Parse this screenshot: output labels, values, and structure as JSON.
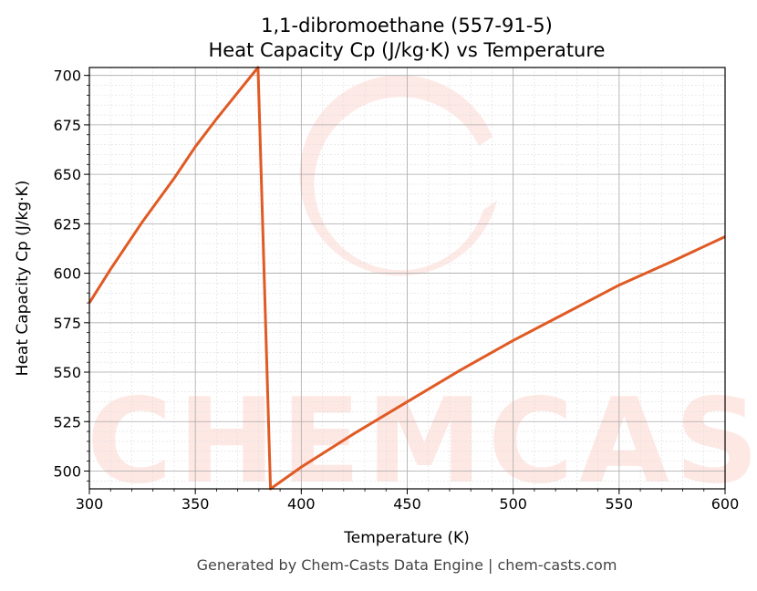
{
  "chart_data": {
    "type": "line",
    "title": "1,1-dibromoethane (557-91-5)",
    "subtitle": "Heat Capacity Cp (J/kg·K) vs Temperature",
    "xlabel": "Temperature (K)",
    "ylabel": "Heat Capacity Cp (J/kg·K)",
    "xlim": [
      300,
      600
    ],
    "ylim": [
      491,
      704
    ],
    "xticks": [
      300,
      350,
      400,
      450,
      500,
      550,
      600
    ],
    "yticks": [
      500,
      525,
      550,
      575,
      600,
      625,
      650,
      675,
      700
    ],
    "grid": true,
    "series": [
      {
        "name": "Cp",
        "color": "#e05a24",
        "x": [
          300,
          310,
          325,
          340,
          350,
          360,
          375,
          379.6,
          385.5,
          400,
          425,
          450,
          475,
          500,
          525,
          550,
          575,
          600
        ],
        "y": [
          585,
          602,
          626,
          648,
          664,
          678,
          698,
          704,
          491,
          502,
          519,
          535,
          551,
          566,
          580,
          594,
          606,
          618.5
        ]
      }
    ],
    "watermark": "CHEMCASTS",
    "footer": "Generated by Chem-Casts Data Engine | chem-casts.com"
  }
}
